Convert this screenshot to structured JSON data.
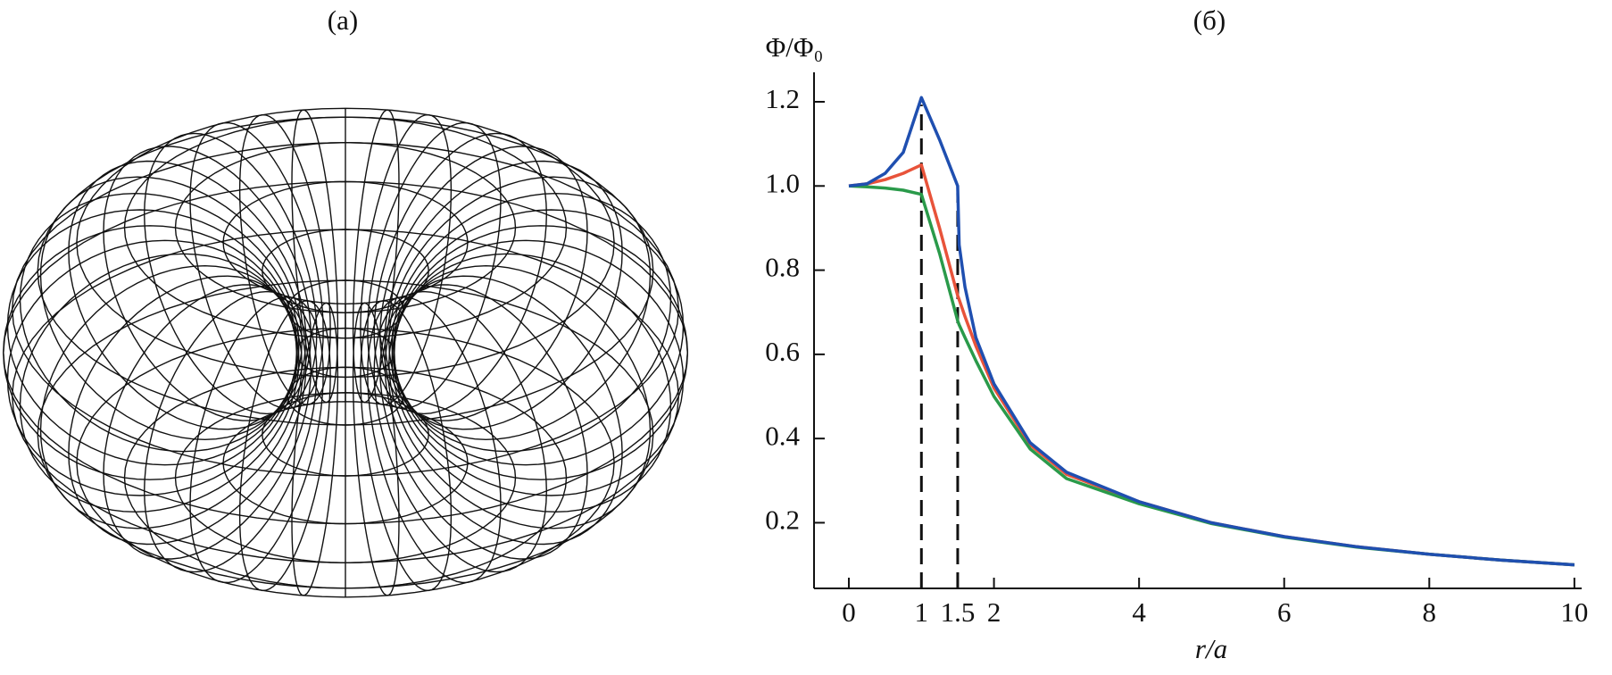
{
  "chart_data": [
    {
      "type": "wireframe",
      "title": "(a)"
    },
    {
      "type": "line",
      "title": "(б)",
      "y_label": "Φ/Φ₀",
      "x_label": "r/a",
      "x": [
        0,
        0.25,
        0.5,
        0.75,
        1,
        1.25,
        1.5,
        1.52,
        1.6,
        1.75,
        2,
        2.5,
        3,
        4,
        5,
        6,
        7,
        8,
        9,
        10
      ],
      "series": [
        {
          "color": "#e8533a",
          "values": [
            1.0,
            1.005,
            1.015,
            1.03,
            1.05,
            0.9,
            0.74,
            0.73,
            0.69,
            0.62,
            0.52,
            0.385,
            0.315,
            0.25,
            0.2,
            0.167,
            0.143,
            0.125,
            0.111,
            0.1
          ]
        },
        {
          "color": "#2a9a4a",
          "values": [
            1.0,
            0.998,
            0.995,
            0.99,
            0.98,
            0.84,
            0.68,
            0.67,
            0.64,
            0.585,
            0.5,
            0.375,
            0.305,
            0.245,
            0.198,
            0.166,
            0.142,
            0.125,
            0.111,
            0.1
          ]
        },
        {
          "color": "#1f4fb0",
          "values": [
            1.0,
            1.005,
            1.03,
            1.08,
            1.21,
            1.11,
            1.0,
            0.86,
            0.76,
            0.64,
            0.53,
            0.39,
            0.32,
            0.25,
            0.2,
            0.167,
            0.143,
            0.125,
            0.111,
            0.1
          ]
        }
      ],
      "vlines": [
        1,
        1.5
      ],
      "xlim": [
        -0.48,
        10.1
      ],
      "ylim": [
        0.044,
        1.27
      ],
      "xticks": [
        0,
        1,
        1.5,
        2,
        4,
        6,
        8,
        10
      ],
      "yticks": [
        0.2,
        0.4,
        0.6,
        0.8,
        {
          "value": 1.0,
          "label": "1.0"
        },
        1.2
      ]
    }
  ]
}
